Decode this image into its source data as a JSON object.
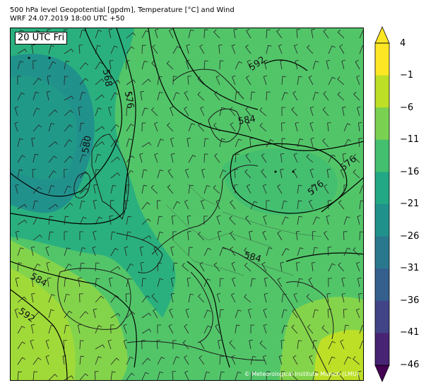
{
  "header": {
    "line1": "500 hPa level Geopotential [gpdm], Temperature [°C] and Wind",
    "line2": "WRF 24.07.2019 18:00 UTC +50"
  },
  "map": {
    "time_label": "20 UTC Fri",
    "copyright": "© Meteorological Institute Munich (LMU)",
    "contour_labels": [
      "568",
      "576",
      "580",
      "584",
      "592",
      "584",
      "576",
      "576",
      "584",
      "592"
    ],
    "colors": {
      "coldest": "#21918c",
      "cold": "#2ab07f",
      "mid": "#52c569",
      "warm": "#84d44b",
      "warmest": "#a0da39",
      "hot": "#dde318"
    }
  },
  "colorbar": {
    "ticks": [
      "4",
      "−1",
      "−6",
      "−11",
      "−16",
      "−21",
      "−26",
      "−31",
      "−36",
      "−41",
      "−46"
    ],
    "colors": [
      "#fde725",
      "#bddf26",
      "#7ad151",
      "#44bf70",
      "#22a884",
      "#21918c",
      "#2a788e",
      "#355f8d",
      "#414487",
      "#482475",
      "#440154"
    ]
  }
}
